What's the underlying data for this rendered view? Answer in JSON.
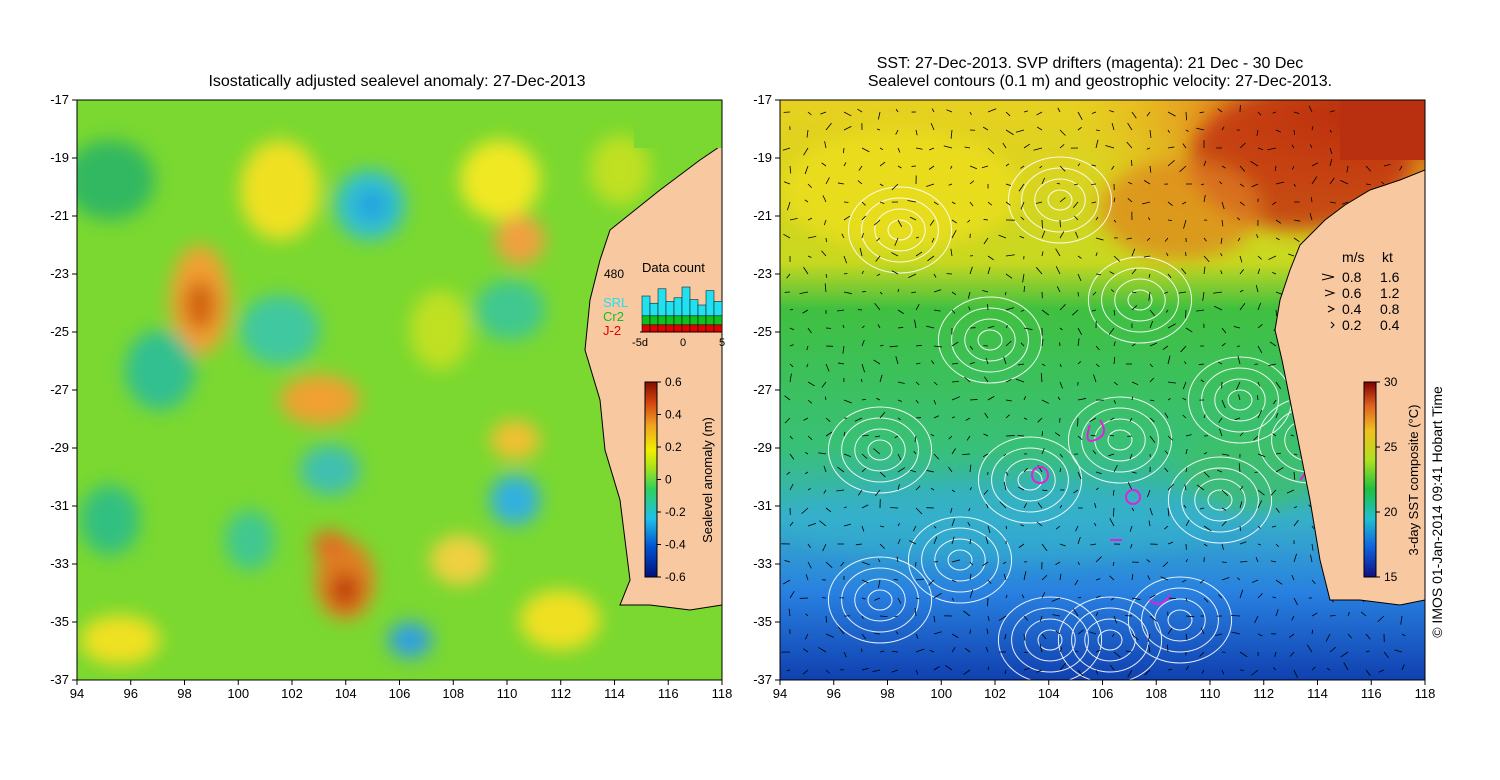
{
  "left_panel": {
    "title": "Isostatically adjusted sealevel anomaly: 27-Dec-2013",
    "x_ticks": [
      "94",
      "96",
      "98",
      "100",
      "102",
      "104",
      "106",
      "108",
      "110",
      "112",
      "114",
      "116",
      "118"
    ],
    "y_ticks": [
      "-17",
      "-19",
      "-21",
      "-23",
      "-25",
      "-27",
      "-29",
      "-31",
      "-33",
      "-35",
      "-37"
    ],
    "colorbar": {
      "label": "Sealevel anomaly (m)",
      "ticks": [
        "0.6",
        "0.4",
        "0.2",
        "0",
        "-0.2",
        "-0.4",
        "-0.6"
      ]
    },
    "data_count": {
      "title": "Data count",
      "max_label": "480",
      "missions": [
        {
          "name": "SRL",
          "color": "#22e0f0"
        },
        {
          "name": "Cr2",
          "color": "#10c020"
        },
        {
          "name": "J-2",
          "color": "#e00000"
        }
      ],
      "x_ticks": [
        "-5d",
        "0",
        "5"
      ]
    }
  },
  "right_panel": {
    "title_line1": "SST: 27-Dec-2013. SVP drifters (magenta): 21 Dec - 30 Dec",
    "title_line2": "Sealevel contours (0.1 m) and geostrophic velocity: 27-Dec-2013.",
    "x_ticks": [
      "94",
      "96",
      "98",
      "100",
      "102",
      "104",
      "106",
      "108",
      "110",
      "112",
      "114",
      "116",
      "118"
    ],
    "y_ticks": [
      "-17",
      "-19",
      "-21",
      "-23",
      "-25",
      "-27",
      "-29",
      "-31",
      "-33",
      "-35",
      "-37"
    ],
    "velocity_legend": {
      "header_ms": "m/s",
      "header_kt": "kt",
      "rows": [
        {
          "ms": "0.8",
          "kt": "1.6"
        },
        {
          "ms": "0.6",
          "kt": "1.2"
        },
        {
          "ms": "0.4",
          "kt": "0.8"
        },
        {
          "ms": "0.2",
          "kt": "0.4"
        }
      ]
    },
    "colorbar": {
      "label": "3-day SST composite (°C)",
      "ticks": [
        "30",
        "25",
        "20",
        "15"
      ]
    }
  },
  "credit": "© IMOS 01-Jan-2014 09:41 Hobart Time",
  "colors": {
    "land": "#f8c8a0",
    "drifters": "#e020e0"
  }
}
